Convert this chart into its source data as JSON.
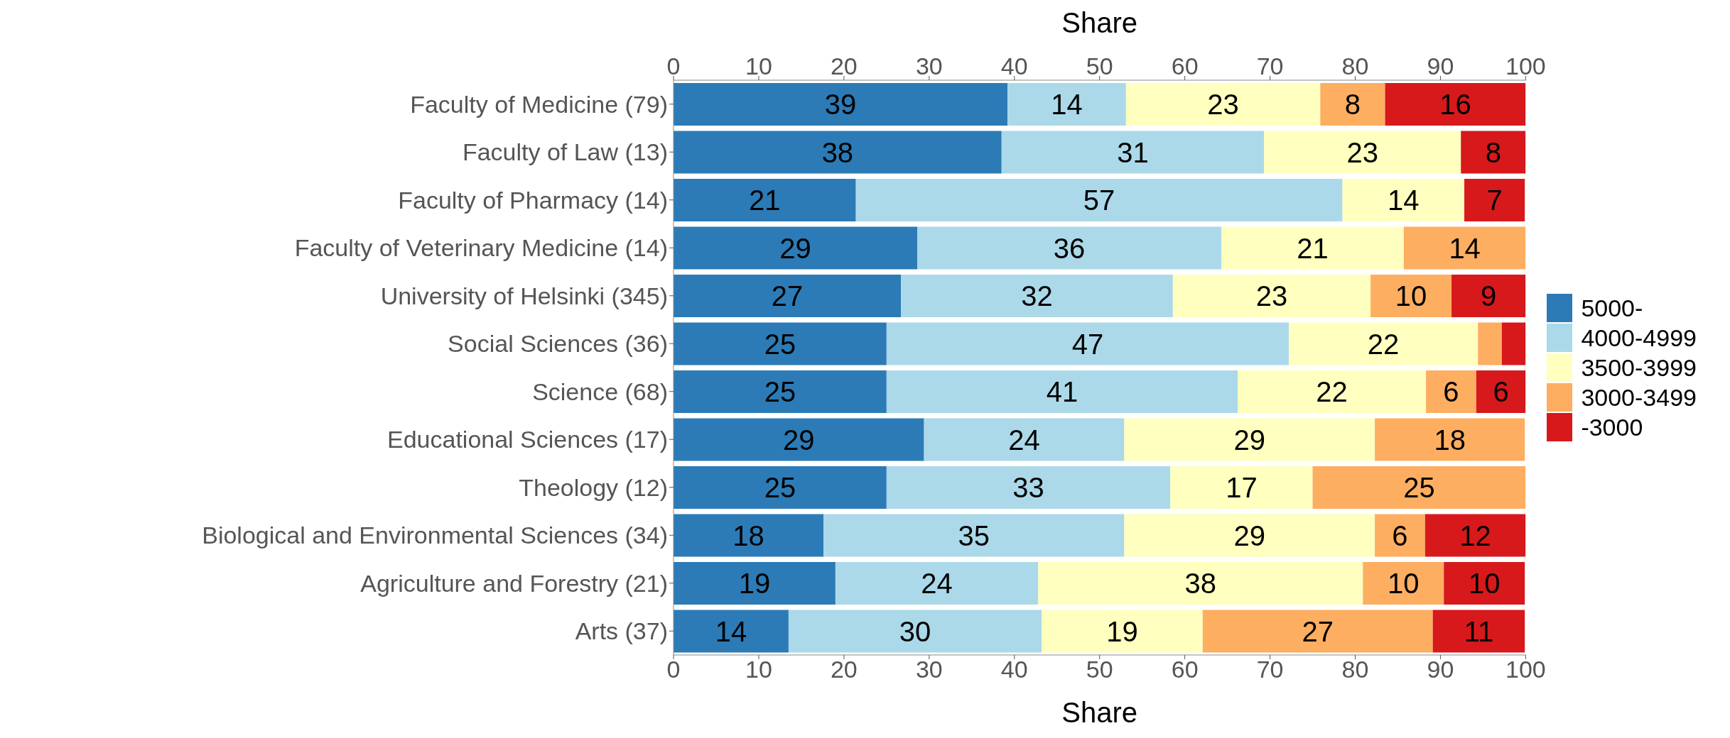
{
  "chart_data": {
    "type": "bar",
    "orientation": "horizontal",
    "stacked": true,
    "xlabel": "Share",
    "x2label": "Share",
    "categories": [
      "Faculty of Medicine (79)",
      "Faculty of Law (13)",
      "Faculty of Pharmacy (14)",
      "Faculty of Veterinary Medicine (14)",
      "University of Helsinki (345)",
      "Social Sciences (36)",
      "Science (68)",
      "Educational Sciences (17)",
      "Theology (12)",
      "Biological and Environmental Sciences (34)",
      "Agriculture and Forestry (21)",
      "Arts (37)"
    ],
    "series": [
      {
        "name": "5000-",
        "color": "#2c7bb6",
        "values": [
          39.2,
          38.5,
          21.4,
          28.6,
          26.7,
          25.0,
          25.0,
          29.4,
          25.0,
          17.6,
          19.0,
          13.5
        ],
        "value_labels": [
          "39",
          "38",
          "21",
          "29",
          "27",
          "25",
          "25",
          "29",
          "25",
          "18",
          "19",
          "14"
        ]
      },
      {
        "name": "4000-4999",
        "color": "#abd9e9",
        "values": [
          13.9,
          30.8,
          57.1,
          35.7,
          31.9,
          47.2,
          41.2,
          23.5,
          33.3,
          35.3,
          23.8,
          29.7
        ],
        "value_labels": [
          "14",
          "31",
          "57",
          "36",
          "32",
          "47",
          "41",
          "24",
          "33",
          "35",
          "24",
          "30"
        ]
      },
      {
        "name": "3500-3999",
        "color": "#ffffbf",
        "values": [
          22.8,
          23.1,
          14.3,
          21.4,
          23.2,
          22.2,
          22.1,
          29.4,
          16.7,
          29.4,
          38.1,
          18.9
        ],
        "value_labels": [
          "23",
          "23",
          "14",
          "21",
          "23",
          "22",
          "22",
          "29",
          "17",
          "29",
          "38",
          "19"
        ]
      },
      {
        "name": "3000-3499",
        "color": "#fdae61",
        "values": [
          7.6,
          null,
          null,
          14.3,
          9.5,
          2.8,
          5.9,
          17.6,
          25.0,
          5.9,
          9.5,
          27.0
        ],
        "value_labels": [
          "8",
          null,
          null,
          "14",
          "10",
          null,
          "6",
          "18",
          "25",
          "6",
          "10",
          "27"
        ]
      },
      {
        "name": "-3000",
        "color": "#d7191c",
        "values": [
          16.5,
          7.7,
          7.1,
          null,
          8.7,
          2.8,
          5.9,
          null,
          null,
          11.8,
          9.5,
          10.8
        ],
        "value_labels": [
          "16",
          "8",
          "7",
          null,
          "9",
          null,
          "6",
          null,
          null,
          "12",
          "10",
          "11"
        ]
      }
    ],
    "xlim": [
      0,
      100
    ],
    "xticks": [
      0,
      10,
      20,
      30,
      40,
      50,
      60,
      70,
      80,
      90,
      100
    ],
    "x2lim": [
      0,
      100
    ],
    "x2ticks": [
      0,
      10,
      20,
      30,
      40,
      50,
      60,
      70,
      80,
      90,
      100
    ],
    "grid": false,
    "legend": "right"
  }
}
